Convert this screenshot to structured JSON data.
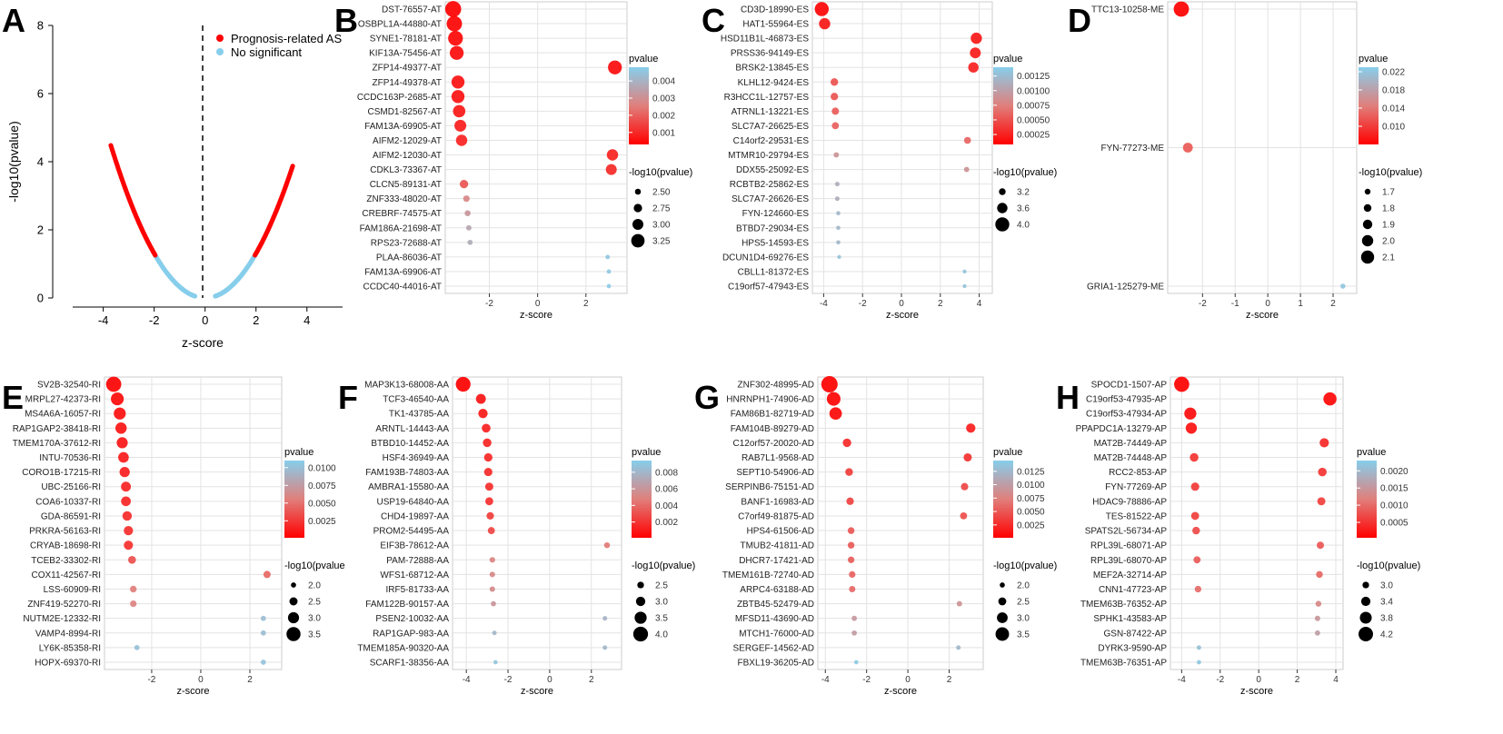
{
  "panel_a": {
    "letter": "A",
    "xlabel": "z-score",
    "ylabel": "-log10(pvalue)",
    "xticks": [
      -4,
      -2,
      0,
      2,
      4
    ],
    "yticks": [
      0,
      2,
      4,
      6,
      8
    ],
    "xlim": [
      -5.2,
      5.4
    ],
    "ylim": [
      0,
      8
    ],
    "legend": [
      "Prognosis-related AS",
      "No significant"
    ],
    "colors": {
      "sig": "#ff0000",
      "ns": "#87ceeb"
    }
  },
  "chart_data": [
    {
      "type": "bubble",
      "letter": "B",
      "xlabel": "z-score",
      "xticks": [
        -2,
        0,
        2
      ],
      "xlim": [
        -3.6,
        3.4
      ],
      "pvalue_title": "pvalue",
      "pvalue_ticks": [
        0.004,
        0.003,
        0.002,
        0.001
      ],
      "pvalue_tick_labels": [
        "0.004",
        "0.003",
        "0.002",
        "0.001"
      ],
      "pvalue_range": [
        0.0003,
        0.0048
      ],
      "size_title": "-log10(pvalue)",
      "size_ticks": [
        2.5,
        2.75,
        3.0,
        3.25
      ],
      "size_tick_labels": [
        "2.50",
        "2.75",
        "3.00",
        "3.25"
      ],
      "size_range": [
        2.3,
        3.5
      ],
      "labels": [
        "DST-76557-AT",
        "OSBPL1A-44880-AT",
        "SYNE1-78181-AT",
        "KIF13A-75456-AT",
        "ZFP14-49377-AT",
        "ZFP14-49378-AT",
        "CCDC163P-2685-AT",
        "CSMD1-82567-AT",
        "FAM13A-69905-AT",
        "AIFM2-12029-AT",
        "AIFM2-12030-AT",
        "CDKL3-73367-AT",
        "CLCN5-89131-AT",
        "ZNF333-48020-AT",
        "CREBRF-74575-AT",
        "FAM186A-21698-AT",
        "RPS23-72688-AT",
        "PLAA-86036-AT",
        "FAM13A-69906-AT",
        "CCDC40-44016-AT"
      ],
      "x": [
        -3.5,
        -3.45,
        -3.4,
        -3.35,
        3.2,
        -3.3,
        -3.3,
        -3.25,
        -3.2,
        -3.15,
        3.1,
        3.05,
        -3.05,
        -2.95,
        -2.9,
        -2.85,
        -2.8,
        2.9,
        2.95,
        2.95
      ],
      "pvalue": [
        0.0003,
        0.00035,
        0.0004,
        0.0005,
        0.0005,
        0.0006,
        0.0006,
        0.0007,
        0.0008,
        0.0009,
        0.0009,
        0.001,
        0.0018,
        0.0028,
        0.0032,
        0.0036,
        0.0038,
        0.0046,
        0.0046,
        0.0047
      ]
    },
    {
      "type": "bubble",
      "letter": "C",
      "xlabel": "z-score",
      "xticks": [
        -4,
        -2,
        0,
        2,
        4
      ],
      "xlim": [
        -4.3,
        4.3
      ],
      "pvalue_title": "pvalue",
      "pvalue_ticks": [
        0.00125,
        0.001,
        0.00075,
        0.0005,
        0.00025
      ],
      "pvalue_tick_labels": [
        "0.00125",
        "0.00100",
        "0.00075",
        "0.00050",
        "0.00025"
      ],
      "pvalue_range": [
        8e-05,
        0.0014
      ],
      "size_title": "-log10(pvalue)",
      "size_ticks": [
        3.2,
        3.6,
        4.0
      ],
      "size_tick_labels": [
        "3.2",
        "3.6",
        "4.0"
      ],
      "size_range": [
        2.9,
        4.2
      ],
      "labels": [
        "CD3D-18990-ES",
        "HAT1-55964-ES",
        "HSD11B1L-46873-ES",
        "PRSS36-94149-ES",
        "BRSK2-13845-ES",
        "KLHL12-9424-ES",
        "R3HCC1L-12757-ES",
        "ATRNL1-13221-ES",
        "SLC7A7-26625-ES",
        "C14orf2-29531-ES",
        "MTMR10-29794-ES",
        "DDX55-25092-ES",
        "RCBTB2-25862-ES",
        "SLC7A7-26626-ES",
        "FYN-124660-ES",
        "BTBD7-29034-ES",
        "HPS5-14593-ES",
        "DCUN1D4-69276-ES",
        "CBLL1-81372-ES",
        "C19orf57-47943-ES"
      ],
      "x": [
        -4.1,
        -3.95,
        3.85,
        3.8,
        3.7,
        -3.45,
        -3.45,
        -3.4,
        -3.4,
        3.4,
        -3.35,
        3.35,
        -3.3,
        -3.3,
        -3.25,
        -3.25,
        -3.25,
        -3.2,
        3.25,
        3.25
      ],
      "pvalue": [
        0.0001,
        0.0002,
        0.0002,
        0.00022,
        0.00025,
        0.0005,
        0.00052,
        0.00055,
        0.00058,
        0.0006,
        0.0009,
        0.0009,
        0.0011,
        0.0011,
        0.0012,
        0.0012,
        0.0012,
        0.0013,
        0.0013,
        0.0013
      ]
    },
    {
      "type": "bubble",
      "letter": "D",
      "xlabel": "z-score",
      "xticks": [
        -2,
        -1,
        0,
        1,
        2
      ],
      "xlim": [
        -2.9,
        2.5
      ],
      "pvalue_title": "pvalue",
      "pvalue_ticks": [
        0.022,
        0.018,
        0.014,
        0.01
      ],
      "pvalue_tick_labels": [
        "0.022",
        "0.018",
        "0.014",
        "0.010"
      ],
      "pvalue_range": [
        0.006,
        0.023
      ],
      "size_title": "-log10(pvalue)",
      "size_ticks": [
        1.7,
        1.8,
        1.9,
        2.0,
        2.1
      ],
      "size_tick_labels": [
        "1.7",
        "1.8",
        "1.9",
        "2.0",
        "2.1"
      ],
      "size_range": [
        1.6,
        2.25
      ],
      "labels": [
        "TTC13-10258-ME",
        "FYN-77273-ME",
        "GRIA1-125279-ME"
      ],
      "x": [
        -2.65,
        -2.45,
        2.3
      ],
      "pvalue": [
        0.006,
        0.012,
        0.022
      ]
    },
    {
      "type": "bubble",
      "letter": "E",
      "xlabel": "z-score",
      "xticks": [
        -2,
        0,
        2
      ],
      "xlim": [
        -3.7,
        3.0
      ],
      "pvalue_title": "pvalue",
      "pvalue_ticks": [
        0.01,
        0.0075,
        0.005,
        0.0025
      ],
      "pvalue_tick_labels": [
        "0.0100",
        "0.0075",
        "0.0050",
        "0.0025"
      ],
      "pvalue_range": [
        0.0001,
        0.011
      ],
      "size_title": "-log10(pvalue",
      "size_ticks": [
        2.0,
        2.5,
        3.0,
        3.5
      ],
      "size_tick_labels": [
        "2.0",
        "2.5",
        "3.0",
        "3.5"
      ],
      "size_range": [
        1.8,
        3.8
      ],
      "labels": [
        "SV2B-32540-RI",
        "MRPL27-42373-RI",
        "MS4A6A-16057-RI",
        "RAP1GAP2-38418-RI",
        "TMEM170A-37612-RI",
        "INTU-70536-RI",
        "CORO1B-17215-RI",
        "UBC-25166-RI",
        "COA6-10337-RI",
        "GDA-86591-RI",
        "PRKRA-56163-RI",
        "CRYAB-18698-RI",
        "TCEB2-33302-RI",
        "COX11-42567-RI",
        "LSS-60909-RI",
        "ZNF419-52270-RI",
        "NUTM2E-12332-RI",
        "VAMP4-8994-RI",
        "LY6K-85358-RI",
        "HOPX-69370-RI"
      ],
      "x": [
        -3.55,
        -3.4,
        -3.3,
        -3.25,
        -3.2,
        -3.15,
        -3.1,
        -3.05,
        -3.05,
        -3.0,
        -2.95,
        -2.95,
        -2.8,
        2.7,
        -2.75,
        -2.75,
        2.55,
        2.55,
        -2.6,
        2.55
      ],
      "pvalue": [
        0.0002,
        0.0005,
        0.0007,
        0.0009,
        0.001,
        0.0012,
        0.0014,
        0.0016,
        0.0017,
        0.0019,
        0.002,
        0.0021,
        0.0035,
        0.0045,
        0.0055,
        0.0058,
        0.0098,
        0.0098,
        0.01,
        0.0102
      ]
    },
    {
      "type": "bubble",
      "letter": "F",
      "xlabel": "z-score",
      "xticks": [
        -4,
        -2,
        0,
        2
      ],
      "xlim": [
        -4.4,
        3.1
      ],
      "pvalue_title": "pvalue",
      "pvalue_ticks": [
        0.008,
        0.006,
        0.004,
        0.002
      ],
      "pvalue_tick_labels": [
        "0.008",
        "0.006",
        "0.004",
        "0.002"
      ],
      "pvalue_range": [
        0.0001,
        0.0094
      ],
      "size_title": "-log10(pvalue)",
      "size_ticks": [
        2.5,
        3.0,
        3.5,
        4.0
      ],
      "size_tick_labels": [
        "2.5",
        "3.0",
        "3.5",
        "4.0"
      ],
      "size_range": [
        2.0,
        4.2
      ],
      "labels": [
        "MAP3K13-68008-AA",
        "TCF3-46540-AA",
        "TK1-43785-AA",
        "ARNTL-14443-AA",
        "BTBD10-14452-AA",
        "HSF4-36949-AA",
        "FAM193B-74803-AA",
        "AMBRA1-15580-AA",
        "USP19-64840-AA",
        "CHD4-19897-AA",
        "PROM2-54495-AA",
        "EIF3B-78612-AA",
        "PAM-72888-AA",
        "WFS1-68712-AA",
        "IRF5-81733-AA",
        "FAM122B-90157-AA",
        "PSEN2-10032-AA",
        "RAP1GAP-983-AA",
        "TMEM185A-90320-AA",
        "SCARF1-38356-AA"
      ],
      "x": [
        -4.15,
        -3.3,
        -3.2,
        -3.05,
        -3.0,
        -2.95,
        -2.95,
        -2.9,
        -2.9,
        -2.85,
        -2.8,
        2.75,
        -2.75,
        -2.75,
        -2.75,
        -2.7,
        2.65,
        -2.65,
        2.65,
        -2.6
      ],
      "pvalue": [
        0.0001,
        0.0008,
        0.001,
        0.0013,
        0.0014,
        0.0015,
        0.0016,
        0.0017,
        0.0018,
        0.0023,
        0.0026,
        0.0045,
        0.005,
        0.0052,
        0.0054,
        0.006,
        0.0078,
        0.008,
        0.008,
        0.0088
      ]
    },
    {
      "type": "bubble",
      "letter": "G",
      "xlabel": "z-score",
      "xticks": [
        -4,
        -2,
        0,
        2
      ],
      "xlim": [
        -4.1,
        3.3
      ],
      "pvalue_title": "pvalue",
      "pvalue_ticks": [
        0.0125,
        0.01,
        0.0075,
        0.005,
        0.0025
      ],
      "pvalue_tick_labels": [
        "0.0125",
        "0.0100",
        "0.0075",
        "0.0050",
        "0.0025"
      ],
      "pvalue_range": [
        0.0001,
        0.0145
      ],
      "size_title": "-log10(pvalue)",
      "size_ticks": [
        2.0,
        2.5,
        3.0,
        3.5
      ],
      "size_tick_labels": [
        "2.0",
        "2.5",
        "3.0",
        "3.5"
      ],
      "size_range": [
        1.8,
        3.9
      ],
      "labels": [
        "ZNF302-48995-AD",
        "HNRNPH1-74906-AD",
        "FAM86B1-82719-AD",
        "FAM104B-89279-AD",
        "C12orf57-20020-AD",
        "RAB7L1-9568-AD",
        "SEPT10-54906-AD",
        "SERPINB6-75151-AD",
        "BANF1-16983-AD",
        "C7orf49-81875-AD",
        "HPS4-61506-AD",
        "TMUB2-41811-AD",
        "DHCR7-17421-AD",
        "TMEM161B-72740-AD",
        "ARPC4-63188-AD",
        "ZBTB45-52479-AD",
        "MFSD11-43690-AD",
        "MTCH1-76000-AD",
        "SERGEF-14562-AD",
        "FBXL19-36205-AD"
      ],
      "x": [
        -3.8,
        -3.6,
        -3.5,
        3.05,
        -2.95,
        2.9,
        -2.85,
        2.75,
        -2.8,
        2.7,
        -2.75,
        -2.75,
        -2.75,
        -2.7,
        -2.7,
        2.5,
        -2.6,
        -2.6,
        2.45,
        -2.5
      ],
      "pvalue": [
        0.0001,
        0.0003,
        0.0005,
        0.0018,
        0.0025,
        0.0028,
        0.0035,
        0.004,
        0.0038,
        0.0045,
        0.005,
        0.0052,
        0.0054,
        0.0056,
        0.006,
        0.009,
        0.0095,
        0.0098,
        0.0125,
        0.014
      ]
    },
    {
      "type": "bubble",
      "letter": "H",
      "xlabel": "z-score",
      "xticks": [
        -4,
        -2,
        0,
        2,
        4
      ],
      "xlim": [
        -4.3,
        4.0
      ],
      "pvalue_title": "pvalue",
      "pvalue_ticks": [
        0.002,
        0.0015,
        0.001,
        0.0005
      ],
      "pvalue_tick_labels": [
        "0.0020",
        "0.0015",
        "0.0010",
        "0.0005"
      ],
      "pvalue_range": [
        5e-05,
        0.0023
      ],
      "size_title": "-log10(pvalue)",
      "size_ticks": [
        3.0,
        3.4,
        3.8,
        4.2
      ],
      "size_tick_labels": [
        "3.0",
        "3.4",
        "3.8",
        "4.2"
      ],
      "size_range": [
        2.6,
        4.4
      ],
      "labels": [
        "SPOCD1-1507-AP",
        "C19orf53-47935-AP",
        "C19orf53-47934-AP",
        "PPAPDC1A-13279-AP",
        "MAT2B-74449-AP",
        "MAT2B-74448-AP",
        "RCC2-853-AP",
        "FYN-77269-AP",
        "HDAC9-78886-AP",
        "TES-81522-AP",
        "SPATS2L-56734-AP",
        "RPL39L-68071-AP",
        "RPL39L-68070-AP",
        "MEF2A-32714-AP",
        "CNN1-47723-AP",
        "TMEM63B-76352-AP",
        "SPHK1-43583-AP",
        "GSN-87422-AP",
        "DYRK3-9590-AP",
        "TMEM63B-76351-AP"
      ],
      "x": [
        -4.0,
        3.7,
        -3.55,
        -3.5,
        3.4,
        -3.35,
        3.3,
        -3.3,
        3.25,
        -3.3,
        -3.25,
        3.2,
        -3.2,
        3.15,
        -3.15,
        3.1,
        3.05,
        3.05,
        -3.1,
        -3.1
      ],
      "pvalue": [
        5e-05,
        0.0001,
        0.00015,
        0.0002,
        0.0004,
        0.0005,
        0.0005,
        0.00055,
        0.0006,
        0.0006,
        0.0007,
        0.0008,
        0.00085,
        0.00095,
        0.001,
        0.0013,
        0.0015,
        0.0016,
        0.0021,
        0.0022
      ]
    }
  ]
}
